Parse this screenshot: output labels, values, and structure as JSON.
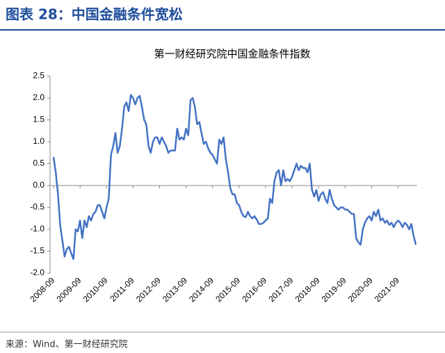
{
  "header": {
    "title": "图表 28：中国金融条件宽松",
    "source": "来源：Wind、第一财经研究院"
  },
  "chart_data": {
    "type": "line",
    "title": "第一财经研究院中国金融条件指数",
    "color": "#4472c4",
    "categories": [
      "2008-09",
      null,
      null,
      null,
      null,
      null,
      null,
      null,
      null,
      null,
      null,
      null,
      "2009-09",
      null,
      null,
      null,
      null,
      null,
      null,
      null,
      null,
      null,
      null,
      null,
      "2010-09",
      null,
      null,
      null,
      null,
      null,
      null,
      null,
      null,
      null,
      null,
      null,
      "2011-09",
      null,
      null,
      null,
      null,
      null,
      null,
      null,
      null,
      null,
      null,
      null,
      "2012-09",
      null,
      null,
      null,
      null,
      null,
      null,
      null,
      null,
      null,
      null,
      null,
      "2013-09",
      null,
      null,
      null,
      null,
      null,
      null,
      null,
      null,
      null,
      null,
      null,
      "2014-09",
      null,
      null,
      null,
      null,
      null,
      null,
      null,
      null,
      null,
      null,
      null,
      "2015-09",
      null,
      null,
      null,
      null,
      null,
      null,
      null,
      null,
      null,
      null,
      null,
      "2016-09",
      null,
      null,
      null,
      null,
      null,
      null,
      null,
      null,
      null,
      null,
      null,
      "2017-09",
      null,
      null,
      null,
      null,
      null,
      null,
      null,
      null,
      null,
      null,
      null,
      "2018-09",
      null,
      null,
      null,
      null,
      null,
      null,
      null,
      null,
      null,
      null,
      null,
      "2019-09",
      null,
      null,
      null,
      null,
      null,
      null,
      null,
      null,
      null,
      null,
      null,
      "2020-09",
      null,
      null,
      null,
      null,
      null,
      null,
      null,
      null,
      null,
      null,
      null,
      "2021-09",
      null,
      null,
      null,
      null,
      null,
      null,
      null,
      null
    ],
    "values": [
      0.65,
      0.3,
      -0.2,
      -0.9,
      -1.25,
      -1.62,
      -1.45,
      -1.4,
      -1.55,
      -1.68,
      -1.0,
      -1.05,
      -0.8,
      -1.2,
      -0.8,
      -0.95,
      -0.7,
      -0.8,
      -0.65,
      -0.6,
      -0.45,
      -0.45,
      -0.6,
      -0.75,
      -0.5,
      -0.3,
      0.7,
      0.9,
      1.2,
      0.75,
      0.9,
      1.3,
      1.8,
      1.9,
      1.7,
      2.07,
      2.0,
      1.85,
      2.0,
      2.05,
      1.8,
      1.5,
      1.4,
      0.9,
      0.75,
      1.0,
      1.1,
      1.1,
      0.95,
      1.1,
      1.0,
      0.9,
      0.75,
      0.8,
      0.8,
      0.8,
      1.3,
      1.05,
      1.1,
      1.05,
      1.3,
      1.15,
      1.95,
      2.0,
      1.8,
      1.4,
      1.45,
      1.2,
      0.95,
      1.0,
      0.85,
      0.75,
      0.7,
      0.6,
      0.5,
      1.05,
      0.95,
      1.1,
      0.6,
      0.3,
      -0.05,
      -0.2,
      -0.2,
      -0.4,
      -0.45,
      -0.6,
      -0.7,
      -0.72,
      -0.6,
      -0.7,
      -0.75,
      -0.7,
      -0.78,
      -0.88,
      -0.88,
      -0.85,
      -0.8,
      -0.75,
      -0.3,
      -0.4,
      0.1,
      0.3,
      0.35,
      0.0,
      0.35,
      0.1,
      0.15,
      0.1,
      0.2,
      0.35,
      0.5,
      0.35,
      0.45,
      0.4,
      0.4,
      0.3,
      0.5,
      -0.1,
      -0.25,
      -0.1,
      -0.35,
      -0.2,
      -0.15,
      -0.3,
      -0.4,
      -0.1,
      -0.3,
      -0.45,
      -0.5,
      -0.55,
      -0.5,
      -0.5,
      -0.55,
      -0.55,
      -0.6,
      -0.65,
      -0.65,
      -1.2,
      -1.3,
      -1.35,
      -1.0,
      -0.85,
      -0.75,
      -0.7,
      -0.8,
      -0.6,
      -0.7,
      -0.55,
      -0.8,
      -0.75,
      -0.85,
      -0.8,
      -0.9,
      -0.85,
      -0.95,
      -0.85,
      -0.8,
      -0.85,
      -0.95,
      -0.85,
      -0.9,
      -1.0,
      -0.88,
      -1.15,
      -1.35
    ],
    "ylim": [
      -2,
      2.5
    ],
    "yticks": [
      2.5,
      {
        "value": 2,
        "label": "2.0"
      },
      1.5,
      {
        "value": 1,
        "label": "1.0"
      },
      0.5,
      {
        "value": 0,
        "label": "0.0"
      },
      -0.5,
      {
        "value": -1,
        "label": "-1.0"
      },
      -1.5,
      {
        "value": -2,
        "label": "-2.0"
      }
    ]
  }
}
